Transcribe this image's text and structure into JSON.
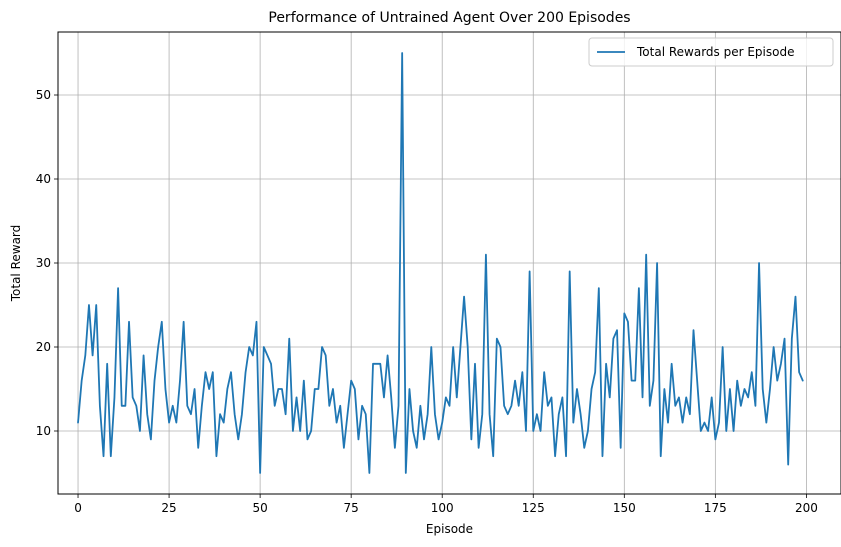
{
  "chart_data": {
    "type": "line",
    "title": "Performance of Untrained Agent Over 200 Episodes",
    "xlabel": "Episode",
    "ylabel": "Total Reward",
    "xlim": [
      -5.5,
      209.5
    ],
    "ylim": [
      2.5,
      57.5
    ],
    "xticks": [
      0,
      25,
      50,
      75,
      100,
      125,
      150,
      175,
      200
    ],
    "yticks": [
      10,
      20,
      30,
      40,
      50
    ],
    "grid": true,
    "legend_position": "top-right",
    "series": [
      {
        "name": "Total Rewards per Episode",
        "color": "#1f77b4",
        "x_start": 0,
        "values": [
          11,
          16,
          19,
          25,
          19,
          25,
          13,
          7,
          18,
          7,
          14,
          27,
          13,
          13,
          23,
          14,
          13,
          10,
          19,
          12,
          9,
          16,
          20,
          23,
          15,
          11,
          13,
          11,
          16,
          23,
          13,
          12,
          15,
          8,
          13,
          17,
          15,
          17,
          7,
          12,
          11,
          15,
          17,
          12,
          9,
          12,
          17,
          20,
          19,
          23,
          5,
          20,
          19,
          18,
          13,
          15,
          15,
          12,
          21,
          10,
          14,
          10,
          16,
          9,
          10,
          15,
          15,
          20,
          19,
          13,
          15,
          11,
          13,
          8,
          12,
          16,
          15,
          9,
          13,
          12,
          5,
          18,
          18,
          18,
          14,
          19,
          14,
          8,
          13,
          55,
          5,
          15,
          10,
          8,
          13,
          9,
          12,
          20,
          12,
          9,
          11,
          14,
          13,
          20,
          14,
          20,
          26,
          20,
          9,
          18,
          8,
          12,
          31,
          12,
          7,
          21,
          20,
          13,
          12,
          13,
          16,
          13,
          17,
          10,
          29,
          10,
          12,
          10,
          17,
          13,
          14,
          7,
          12,
          14,
          7,
          29,
          11,
          15,
          12,
          8,
          10,
          15,
          17,
          27,
          7,
          18,
          14,
          21,
          22,
          8,
          24,
          23,
          16,
          16,
          27,
          14,
          31,
          13,
          16,
          30,
          7,
          15,
          11,
          18,
          13,
          14,
          11,
          14,
          12,
          22,
          16,
          10,
          11,
          10,
          14,
          9,
          11,
          20,
          10,
          15,
          10,
          16,
          13,
          15,
          14,
          17,
          13,
          30,
          15,
          11,
          15,
          20,
          16,
          18,
          21,
          6,
          21,
          26,
          17,
          16
        ]
      }
    ]
  }
}
